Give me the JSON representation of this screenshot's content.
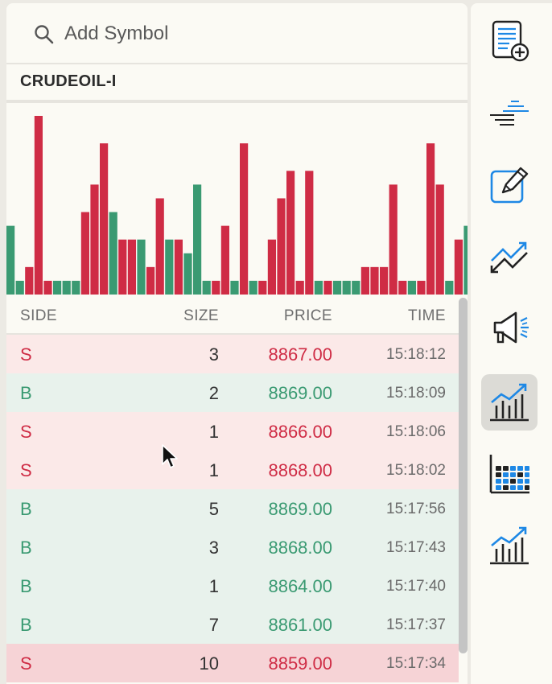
{
  "search": {
    "placeholder": "Add Symbol",
    "value": ""
  },
  "symbol": "CRUDEOIL-I",
  "colors": {
    "sell": "#cf2c45",
    "buy": "#3a9a72",
    "accent": "#1e88e5"
  },
  "chart_data": {
    "type": "bar",
    "series": [
      {
        "side": "S",
        "values": [
          1,
          1,
          2,
          13,
          1,
          1,
          1,
          1,
          6,
          8,
          11,
          6,
          4,
          4,
          4,
          2,
          7,
          4,
          4,
          3,
          8,
          1,
          1,
          5,
          1,
          11,
          1,
          1,
          4,
          7,
          9,
          1,
          9,
          1,
          1,
          1,
          1,
          1,
          2,
          2,
          2,
          8,
          1,
          1,
          1,
          11,
          8,
          1,
          4,
          5,
          1,
          1,
          1,
          3
        ]
      },
      {
        "side": "B",
        "values": [
          5,
          1,
          1,
          1,
          1,
          1,
          1,
          1,
          1,
          1,
          1,
          1,
          1,
          1,
          1,
          1,
          1,
          1,
          1,
          1,
          8,
          1,
          1,
          1,
          1,
          11,
          1,
          1,
          1,
          1,
          1,
          1,
          1,
          1,
          1,
          1,
          1,
          1,
          1,
          1,
          1,
          1,
          1,
          1,
          1,
          1,
          1,
          1,
          1,
          1,
          1,
          1,
          1,
          1
        ]
      }
    ],
    "bar_sides": [
      "B",
      "B",
      "S",
      "S",
      "S",
      "B",
      "B",
      "B",
      "S",
      "S",
      "S",
      "B",
      "S",
      "S",
      "B",
      "S",
      "S",
      "B",
      "S",
      "B",
      "B",
      "B",
      "S",
      "S",
      "B",
      "S",
      "B",
      "S",
      "S",
      "S",
      "S",
      "S",
      "S",
      "B",
      "S",
      "B",
      "B",
      "B",
      "S",
      "S",
      "S",
      "S",
      "S",
      "B",
      "S",
      "S",
      "S",
      "B",
      "S",
      "B",
      "B",
      "S",
      "S",
      "S"
    ],
    "bar_values": [
      5,
      1,
      2,
      13,
      1,
      1,
      1,
      1,
      6,
      8,
      11,
      6,
      4,
      4,
      4,
      2,
      7,
      4,
      4,
      3,
      8,
      1,
      1,
      5,
      1,
      11,
      1,
      1,
      4,
      7,
      9,
      1,
      9,
      1,
      1,
      1,
      1,
      1,
      2,
      2,
      2,
      8,
      1,
      1,
      1,
      11,
      8,
      1,
      4,
      5,
      1,
      1,
      1,
      3
    ],
    "ylim": [
      0,
      13
    ],
    "grid": false,
    "xlabel": "",
    "ylabel": ""
  },
  "table": {
    "headers": {
      "side": "SIDE",
      "size": "SIZE",
      "price": "PRICE",
      "time": "TIME"
    },
    "rows": [
      {
        "side": "S",
        "size": "3",
        "price": "8867.00",
        "time": "15:18:12"
      },
      {
        "side": "B",
        "size": "2",
        "price": "8869.00",
        "time": "15:18:09"
      },
      {
        "side": "S",
        "size": "1",
        "price": "8866.00",
        "time": "15:18:06"
      },
      {
        "side": "S",
        "size": "1",
        "price": "8868.00",
        "time": "15:18:02"
      },
      {
        "side": "B",
        "size": "5",
        "price": "8869.00",
        "time": "15:17:56"
      },
      {
        "side": "B",
        "size": "3",
        "price": "8868.00",
        "time": "15:17:43"
      },
      {
        "side": "B",
        "size": "1",
        "price": "8864.00",
        "time": "15:17:40"
      },
      {
        "side": "B",
        "size": "7",
        "price": "8861.00",
        "time": "15:17:37"
      },
      {
        "side": "S",
        "size": "10",
        "price": "8859.00",
        "time": "15:17:34"
      }
    ]
  },
  "toolbar": [
    {
      "icon": "new-document-icon",
      "active": false
    },
    {
      "icon": "market-depth-icon",
      "active": false
    },
    {
      "icon": "edit-icon",
      "active": false
    },
    {
      "icon": "trend-arrows-icon",
      "active": false
    },
    {
      "icon": "megaphone-icon",
      "active": false
    },
    {
      "icon": "time-and-sales-icon",
      "active": true
    },
    {
      "icon": "heatmap-icon",
      "active": false
    },
    {
      "icon": "volume-chart-icon",
      "active": false
    }
  ]
}
